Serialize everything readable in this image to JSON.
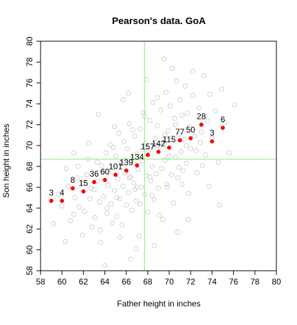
{
  "chart_data": {
    "type": "scatter",
    "title": "Pearson's data. GoA",
    "xlabel": "Father height in inches",
    "ylabel": "Son height in inches",
    "xlim": [
      58,
      80
    ],
    "ylim": [
      58,
      80
    ],
    "xticks": [
      58,
      60,
      62,
      64,
      66,
      68,
      70,
      72,
      74,
      76,
      78,
      80
    ],
    "yticks": [
      58,
      60,
      62,
      64,
      66,
      68,
      70,
      72,
      74,
      76,
      78,
      80
    ],
    "grid": false,
    "reference_lines": {
      "vertical_x": 67.7,
      "horizontal_y": 68.7,
      "color": "#90ee90"
    },
    "colors": {
      "raw_points": "#cccccc",
      "group_means": "#ff0000"
    },
    "group_means": [
      {
        "x": 59,
        "y": 64.7,
        "count": "3"
      },
      {
        "x": 60,
        "y": 64.7,
        "count": "4"
      },
      {
        "x": 61,
        "y": 65.9,
        "count": "8"
      },
      {
        "x": 62,
        "y": 65.6,
        "count": "15"
      },
      {
        "x": 63,
        "y": 66.5,
        "count": "36"
      },
      {
        "x": 64,
        "y": 66.7,
        "count": "60"
      },
      {
        "x": 65,
        "y": 67.2,
        "count": "101"
      },
      {
        "x": 66,
        "y": 67.6,
        "count": "139"
      },
      {
        "x": 67,
        "y": 68.1,
        "count": "134"
      },
      {
        "x": 68,
        "y": 69.1,
        "count": "157"
      },
      {
        "x": 69,
        "y": 69.4,
        "count": "142"
      },
      {
        "x": 70,
        "y": 69.8,
        "count": "115"
      },
      {
        "x": 71,
        "y": 70.5,
        "count": "77"
      },
      {
        "x": 72,
        "y": 70.7,
        "count": "50"
      },
      {
        "x": 73,
        "y": 72.0,
        "count": "28"
      },
      {
        "x": 74,
        "y": 70.4,
        "count": "3"
      },
      {
        "x": 75,
        "y": 71.7,
        "count": "6"
      }
    ],
    "raw_points": [
      [
        59.2,
        62.5
      ],
      [
        60.0,
        64.2
      ],
      [
        60.3,
        60.8
      ],
      [
        60.8,
        62.8
      ],
      [
        61.1,
        63.4
      ],
      [
        61.4,
        66.9
      ],
      [
        61.6,
        64.1
      ],
      [
        61.9,
        61.4
      ],
      [
        62.1,
        63.7
      ],
      [
        62.3,
        67.2
      ],
      [
        62.6,
        64.9
      ],
      [
        62.8,
        62.2
      ],
      [
        63.0,
        65.8
      ],
      [
        63.1,
        63.1
      ],
      [
        63.3,
        68.4
      ],
      [
        63.5,
        64.6
      ],
      [
        63.6,
        61.9
      ],
      [
        63.8,
        67.5
      ],
      [
        63.9,
        65.1
      ],
      [
        64.1,
        69.3
      ],
      [
        64.2,
        63.5
      ],
      [
        64.3,
        66.2
      ],
      [
        64.5,
        70.1
      ],
      [
        64.6,
        64.4
      ],
      [
        64.7,
        62.6
      ],
      [
        64.8,
        67.9
      ],
      [
        64.9,
        65.7
      ],
      [
        65.0,
        69.0
      ],
      [
        65.1,
        63.2
      ],
      [
        65.2,
        66.8
      ],
      [
        65.3,
        71.2
      ],
      [
        65.4,
        64.9
      ],
      [
        65.5,
        68.3
      ],
      [
        65.6,
        62.4
      ],
      [
        65.7,
        66.1
      ],
      [
        65.8,
        70.4
      ],
      [
        65.9,
        67.4
      ],
      [
        66.0,
        64.3
      ],
      [
        66.1,
        69.7
      ],
      [
        66.2,
        65.5
      ],
      [
        66.3,
        72.1
      ],
      [
        66.4,
        67.0
      ],
      [
        66.5,
        63.8
      ],
      [
        66.6,
        68.8
      ],
      [
        66.7,
        66.4
      ],
      [
        66.8,
        70.9
      ],
      [
        66.9,
        64.7
      ],
      [
        67.0,
        69.2
      ],
      [
        67.1,
        67.7
      ],
      [
        67.2,
        61.3
      ],
      [
        67.3,
        71.6
      ],
      [
        67.4,
        66.0
      ],
      [
        67.5,
        68.5
      ],
      [
        67.6,
        73.2
      ],
      [
        67.7,
        65.3
      ],
      [
        67.8,
        70.2
      ],
      [
        67.9,
        67.1
      ],
      [
        68.0,
        63.6
      ],
      [
        68.1,
        69.5
      ],
      [
        68.2,
        72.4
      ],
      [
        68.3,
        66.6
      ],
      [
        68.4,
        68.0
      ],
      [
        68.5,
        74.1
      ],
      [
        68.6,
        64.8
      ],
      [
        68.7,
        70.7
      ],
      [
        68.8,
        67.3
      ],
      [
        68.9,
        71.9
      ],
      [
        69.0,
        65.9
      ],
      [
        69.1,
        69.9
      ],
      [
        69.2,
        73.4
      ],
      [
        69.3,
        67.8
      ],
      [
        69.4,
        62.9
      ],
      [
        69.5,
        70.3
      ],
      [
        69.6,
        68.6
      ],
      [
        69.7,
        75.1
      ],
      [
        69.8,
        66.3
      ],
      [
        69.9,
        71.4
      ],
      [
        70.0,
        69.0
      ],
      [
        70.1,
        73.8
      ],
      [
        70.2,
        67.2
      ],
      [
        70.3,
        70.8
      ],
      [
        70.4,
        64.5
      ],
      [
        70.5,
        72.6
      ],
      [
        70.6,
        68.9
      ],
      [
        70.7,
        76.2
      ],
      [
        70.8,
        66.9
      ],
      [
        70.9,
        71.1
      ],
      [
        71.0,
        74.4
      ],
      [
        71.1,
        69.4
      ],
      [
        71.2,
        72.9
      ],
      [
        71.3,
        67.6
      ],
      [
        71.4,
        70.6
      ],
      [
        71.5,
        75.7
      ],
      [
        71.6,
        68.3
      ],
      [
        71.7,
        73.1
      ],
      [
        71.8,
        65.4
      ],
      [
        71.9,
        71.8
      ],
      [
        72.0,
        69.7
      ],
      [
        72.2,
        74.8
      ],
      [
        72.4,
        70.9
      ],
      [
        72.6,
        67.4
      ],
      [
        72.8,
        73.6
      ],
      [
        73.0,
        71.3
      ],
      [
        73.2,
        76.7
      ],
      [
        73.4,
        69.1
      ],
      [
        73.6,
        72.4
      ],
      [
        73.8,
        74.9
      ],
      [
        74.0,
        70.7
      ],
      [
        74.3,
        73.3
      ],
      [
        74.6,
        68.4
      ],
      [
        74.9,
        75.4
      ],
      [
        75.2,
        72.2
      ],
      [
        75.6,
        69.3
      ],
      [
        76.1,
        73.9
      ],
      [
        69.5,
        78.3
      ],
      [
        70.3,
        77.4
      ],
      [
        72.2,
        77.1
      ],
      [
        64.0,
        58.5
      ],
      [
        66.4,
        59.1
      ],
      [
        68.6,
        60.4
      ],
      [
        65.7,
        74.4
      ],
      [
        63.4,
        73.0
      ],
      [
        61.1,
        69.3
      ],
      [
        62.5,
        70.2
      ],
      [
        60.6,
        66.1
      ],
      [
        59.7,
        65.3
      ],
      [
        67.9,
        76.3
      ],
      [
        66.2,
        75.0
      ],
      [
        71.8,
        62.9
      ],
      [
        73.7,
        66.1
      ],
      [
        74.7,
        64.3
      ],
      [
        69.1,
        63.3
      ],
      [
        70.8,
        61.7
      ],
      [
        66.9,
        60.1
      ],
      [
        63.6,
        60.7
      ],
      [
        65.4,
        61.2
      ],
      [
        72.5,
        69.5
      ],
      [
        73.1,
        68.1
      ],
      [
        68.4,
        65.2
      ],
      [
        67.3,
        64.4
      ],
      [
        66.8,
        65.8
      ],
      [
        65.9,
        68.6
      ],
      [
        64.8,
        69.8
      ],
      [
        64.4,
        67.4
      ],
      [
        63.7,
        68.1
      ],
      [
        62.7,
        65.9
      ],
      [
        62.0,
        66.4
      ],
      [
        61.5,
        68.0
      ],
      [
        64.9,
        71.8
      ],
      [
        66.6,
        71.5
      ],
      [
        67.7,
        72.8
      ],
      [
        68.9,
        74.6
      ],
      [
        70.6,
        72.0
      ],
      [
        71.6,
        70.0
      ],
      [
        72.9,
        70.3
      ],
      [
        69.8,
        66.0
      ],
      [
        70.9,
        67.9
      ],
      [
        71.2,
        66.3
      ],
      [
        68.2,
        67.0
      ],
      [
        67.0,
        66.0
      ],
      [
        69.6,
        71.0
      ],
      [
        68.8,
        70.0
      ],
      [
        67.5,
        69.6
      ],
      [
        66.3,
        66.9
      ],
      [
        65.1,
        65.0
      ],
      [
        64.2,
        64.0
      ],
      [
        63.3,
        66.6
      ],
      [
        62.4,
        68.7
      ],
      [
        61.2,
        65.0
      ],
      [
        60.4,
        67.8
      ]
    ]
  }
}
